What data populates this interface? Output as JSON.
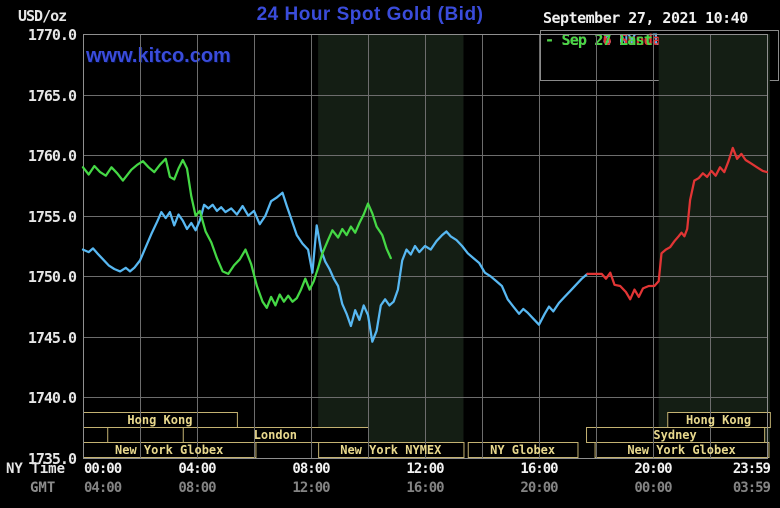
{
  "header": {
    "units_label": "USD/oz",
    "title": "24 Hour Spot Gold (Bid)",
    "watermark": "www.kitco.com",
    "timestamp": "September 27, 2021 10:40",
    "brand_blue": "#3a4cdb"
  },
  "legend": {
    "dash": "-",
    "items": [
      {
        "label": "Sep 24 NY close 1750.20",
        "color": "#58b8f2"
      },
      {
        "label": "Sep 26 Sunday",
        "color": "#e23535"
      },
      {
        "label": "Sep 27 Last 1751.50",
        "color": "#45d845"
      }
    ]
  },
  "y_axis": {
    "min": 1735,
    "max": 1770,
    "tick_labels": [
      "1770.0",
      "1765.0",
      "1760.0",
      "1755.0",
      "1750.0",
      "1745.0",
      "1740.0",
      "1735.0"
    ]
  },
  "x_axis": {
    "ny_time_label": "NY Time",
    "gmt_label": "GMT",
    "ticks": [
      {
        "t": 0,
        "ny": "00:00",
        "gmt": "04:00"
      },
      {
        "t": 4,
        "ny": "04:00",
        "gmt": "08:00"
      },
      {
        "t": 8,
        "ny": "08:00",
        "gmt": "12:00"
      },
      {
        "t": 12,
        "ny": "12:00",
        "gmt": "16:00"
      },
      {
        "t": 16,
        "ny": "16:00",
        "gmt": "20:00"
      },
      {
        "t": 20,
        "ny": "20:00",
        "gmt": "00:00"
      },
      {
        "t": 24,
        "ny": "23:59",
        "gmt": "03:59"
      }
    ]
  },
  "sessions": {
    "border_color": "#c4b272",
    "label_color": "#e8d88d",
    "rows": [
      {
        "boxes": [
          {
            "t0": 0,
            "t1": 5.4,
            "label": "Hong Kong"
          },
          {
            "t0": 20.5,
            "t1": 24.1,
            "label": "Hong Kong"
          }
        ]
      },
      {
        "boxes": [
          {
            "t0": 0,
            "t1": 0.85,
            "label": ""
          },
          {
            "t0": 3.5,
            "t1": 10.0,
            "label": "London"
          },
          {
            "t0": 17.65,
            "t1": 23.9,
            "label": "Sydney"
          }
        ]
      },
      {
        "boxes": [
          {
            "t0": 0,
            "t1": 6.05,
            "label": "New York Globex"
          },
          {
            "t0": 8.25,
            "t1": 13.35,
            "label": "New York NYMEX"
          },
          {
            "t0": 13.5,
            "t1": 17.35,
            "label": "NY Globex"
          },
          {
            "t0": 17.95,
            "t1": 24.05,
            "label": "New York Globex"
          }
        ]
      }
    ]
  },
  "chart_data": {
    "type": "line",
    "title": "24 Hour Spot Gold (Bid)",
    "xlabel": "NY Time (hours, 00:00-23:59)",
    "ylabel": "USD/oz",
    "xlim": [
      0,
      24
    ],
    "ylim": [
      1735,
      1770
    ],
    "grid": true,
    "legend_position": "top-right",
    "band_color": "#141e14",
    "highlight_bands": [
      {
        "t0": 8.25,
        "t1": 13.35
      },
      {
        "t0": 20.2,
        "t1": 24.1
      }
    ],
    "series": [
      {
        "name": "Sep 24 NY close",
        "color": "#58b8f2",
        "points": [
          [
            0,
            1752.2
          ],
          [
            0.2,
            1752.0
          ],
          [
            0.35,
            1752.3
          ],
          [
            0.5,
            1751.9
          ],
          [
            0.7,
            1751.4
          ],
          [
            0.9,
            1750.9
          ],
          [
            1.1,
            1750.6
          ],
          [
            1.3,
            1750.4
          ],
          [
            1.5,
            1750.7
          ],
          [
            1.65,
            1750.4
          ],
          [
            1.8,
            1750.7
          ],
          [
            2.0,
            1751.3
          ],
          [
            2.2,
            1752.4
          ],
          [
            2.4,
            1753.5
          ],
          [
            2.6,
            1754.5
          ],
          [
            2.75,
            1755.3
          ],
          [
            2.9,
            1754.8
          ],
          [
            3.05,
            1755.3
          ],
          [
            3.2,
            1754.2
          ],
          [
            3.35,
            1755.1
          ],
          [
            3.5,
            1754.6
          ],
          [
            3.65,
            1753.9
          ],
          [
            3.8,
            1754.4
          ],
          [
            3.95,
            1753.8
          ],
          [
            4.1,
            1754.6
          ],
          [
            4.25,
            1755.9
          ],
          [
            4.4,
            1755.6
          ],
          [
            4.55,
            1755.9
          ],
          [
            4.7,
            1755.4
          ],
          [
            4.85,
            1755.7
          ],
          [
            5.0,
            1755.3
          ],
          [
            5.2,
            1755.6
          ],
          [
            5.4,
            1755.1
          ],
          [
            5.6,
            1755.8
          ],
          [
            5.8,
            1755.0
          ],
          [
            6.0,
            1755.4
          ],
          [
            6.2,
            1754.3
          ],
          [
            6.4,
            1755.0
          ],
          [
            6.6,
            1756.2
          ],
          [
            6.8,
            1756.5
          ],
          [
            7.0,
            1756.9
          ],
          [
            7.15,
            1755.8
          ],
          [
            7.3,
            1754.8
          ],
          [
            7.5,
            1753.4
          ],
          [
            7.7,
            1752.7
          ],
          [
            7.9,
            1752.2
          ],
          [
            8.05,
            1750.3
          ],
          [
            8.2,
            1754.2
          ],
          [
            8.35,
            1752.2
          ],
          [
            8.5,
            1751.2
          ],
          [
            8.65,
            1750.6
          ],
          [
            8.8,
            1749.8
          ],
          [
            8.95,
            1749.2
          ],
          [
            9.1,
            1747.7
          ],
          [
            9.25,
            1746.9
          ],
          [
            9.4,
            1745.9
          ],
          [
            9.55,
            1747.2
          ],
          [
            9.7,
            1746.4
          ],
          [
            9.85,
            1747.6
          ],
          [
            10.0,
            1746.8
          ],
          [
            10.15,
            1744.6
          ],
          [
            10.3,
            1745.5
          ],
          [
            10.45,
            1747.6
          ],
          [
            10.6,
            1748.1
          ],
          [
            10.75,
            1747.6
          ],
          [
            10.9,
            1747.9
          ],
          [
            11.05,
            1748.9
          ],
          [
            11.2,
            1751.3
          ],
          [
            11.35,
            1752.2
          ],
          [
            11.5,
            1751.8
          ],
          [
            11.65,
            1752.5
          ],
          [
            11.8,
            1752.0
          ],
          [
            12.0,
            1752.5
          ],
          [
            12.2,
            1752.2
          ],
          [
            12.4,
            1752.9
          ],
          [
            12.6,
            1753.4
          ],
          [
            12.75,
            1753.7
          ],
          [
            12.9,
            1753.3
          ],
          [
            13.1,
            1753.0
          ],
          [
            13.3,
            1752.5
          ],
          [
            13.5,
            1751.9
          ],
          [
            13.7,
            1751.5
          ],
          [
            13.9,
            1751.1
          ],
          [
            14.1,
            1750.3
          ],
          [
            14.3,
            1750.0
          ],
          [
            14.5,
            1749.6
          ],
          [
            14.7,
            1749.2
          ],
          [
            14.9,
            1748.1
          ],
          [
            15.1,
            1747.5
          ],
          [
            15.3,
            1746.9
          ],
          [
            15.45,
            1747.3
          ],
          [
            15.6,
            1747.0
          ],
          [
            15.8,
            1746.5
          ],
          [
            16.0,
            1746.0
          ],
          [
            16.2,
            1746.9
          ],
          [
            16.35,
            1747.5
          ],
          [
            16.5,
            1747.1
          ],
          [
            16.7,
            1747.8
          ],
          [
            16.9,
            1748.3
          ],
          [
            17.1,
            1748.8
          ],
          [
            17.3,
            1749.3
          ],
          [
            17.5,
            1749.8
          ],
          [
            17.7,
            1750.2
          ]
        ]
      },
      {
        "name": "Sep 26 Sunday",
        "color": "#e23535",
        "points": [
          [
            17.7,
            1750.2
          ],
          [
            18.2,
            1750.2
          ],
          [
            18.35,
            1749.8
          ],
          [
            18.5,
            1750.3
          ],
          [
            18.65,
            1749.3
          ],
          [
            18.85,
            1749.2
          ],
          [
            19.05,
            1748.7
          ],
          [
            19.2,
            1748.1
          ],
          [
            19.35,
            1748.9
          ],
          [
            19.5,
            1748.3
          ],
          [
            19.65,
            1749.0
          ],
          [
            19.85,
            1749.2
          ],
          [
            20.05,
            1749.2
          ],
          [
            20.2,
            1749.6
          ],
          [
            20.3,
            1751.9
          ],
          [
            20.45,
            1752.2
          ],
          [
            20.6,
            1752.4
          ],
          [
            20.75,
            1752.9
          ],
          [
            20.9,
            1753.3
          ],
          [
            21.0,
            1753.6
          ],
          [
            21.1,
            1753.3
          ],
          [
            21.2,
            1753.9
          ],
          [
            21.3,
            1756.3
          ],
          [
            21.45,
            1757.9
          ],
          [
            21.6,
            1758.1
          ],
          [
            21.75,
            1758.5
          ],
          [
            21.9,
            1758.2
          ],
          [
            22.05,
            1758.7
          ],
          [
            22.2,
            1758.3
          ],
          [
            22.35,
            1759.0
          ],
          [
            22.5,
            1758.6
          ],
          [
            22.65,
            1759.5
          ],
          [
            22.8,
            1760.6
          ],
          [
            22.95,
            1759.7
          ],
          [
            23.1,
            1760.1
          ],
          [
            23.25,
            1759.6
          ],
          [
            23.45,
            1759.3
          ],
          [
            23.65,
            1759.0
          ],
          [
            23.85,
            1758.7
          ],
          [
            24.0,
            1758.6
          ]
        ]
      },
      {
        "name": "Sep 27 Last",
        "color": "#45d845",
        "points": [
          [
            0,
            1759.0
          ],
          [
            0.2,
            1758.4
          ],
          [
            0.4,
            1759.1
          ],
          [
            0.6,
            1758.6
          ],
          [
            0.8,
            1758.3
          ],
          [
            1.0,
            1759.0
          ],
          [
            1.2,
            1758.5
          ],
          [
            1.4,
            1757.9
          ],
          [
            1.7,
            1758.8
          ],
          [
            1.9,
            1759.2
          ],
          [
            2.1,
            1759.5
          ],
          [
            2.3,
            1759.0
          ],
          [
            2.5,
            1758.6
          ],
          [
            2.7,
            1759.2
          ],
          [
            2.9,
            1759.7
          ],
          [
            3.05,
            1758.2
          ],
          [
            3.2,
            1758.0
          ],
          [
            3.35,
            1758.9
          ],
          [
            3.5,
            1759.6
          ],
          [
            3.65,
            1758.9
          ],
          [
            3.8,
            1756.6
          ],
          [
            3.95,
            1755.0
          ],
          [
            4.1,
            1755.4
          ],
          [
            4.3,
            1753.7
          ],
          [
            4.5,
            1752.8
          ],
          [
            4.7,
            1751.5
          ],
          [
            4.9,
            1750.4
          ],
          [
            5.1,
            1750.2
          ],
          [
            5.3,
            1750.9
          ],
          [
            5.5,
            1751.4
          ],
          [
            5.7,
            1752.2
          ],
          [
            5.9,
            1751.0
          ],
          [
            6.1,
            1749.2
          ],
          [
            6.3,
            1747.9
          ],
          [
            6.45,
            1747.4
          ],
          [
            6.6,
            1748.3
          ],
          [
            6.75,
            1747.6
          ],
          [
            6.9,
            1748.5
          ],
          [
            7.05,
            1747.9
          ],
          [
            7.2,
            1748.4
          ],
          [
            7.35,
            1747.9
          ],
          [
            7.5,
            1748.2
          ],
          [
            7.65,
            1748.9
          ],
          [
            7.8,
            1749.8
          ],
          [
            7.95,
            1748.9
          ],
          [
            8.1,
            1749.6
          ],
          [
            8.25,
            1750.7
          ],
          [
            8.4,
            1751.9
          ],
          [
            8.6,
            1753.0
          ],
          [
            8.75,
            1753.8
          ],
          [
            8.95,
            1753.2
          ],
          [
            9.1,
            1753.9
          ],
          [
            9.25,
            1753.4
          ],
          [
            9.4,
            1754.1
          ],
          [
            9.55,
            1753.6
          ],
          [
            9.7,
            1754.4
          ],
          [
            9.85,
            1755.1
          ],
          [
            10.0,
            1756.0
          ],
          [
            10.15,
            1755.2
          ],
          [
            10.3,
            1754.1
          ],
          [
            10.5,
            1753.4
          ],
          [
            10.65,
            1752.3
          ],
          [
            10.8,
            1751.5
          ]
        ]
      }
    ]
  }
}
